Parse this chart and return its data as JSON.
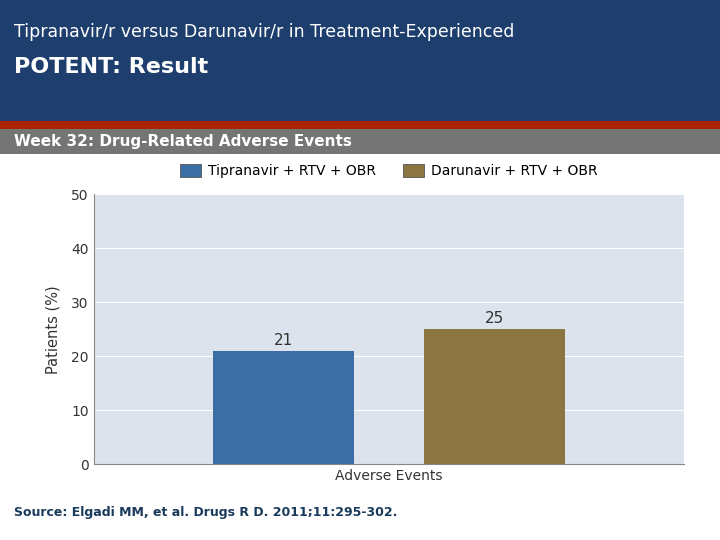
{
  "title_line1": "Tipranavir/r versus Darunavir/r in Treatment-Experienced",
  "title_line2": "POTENT: Result",
  "subtitle": "Week 32: Drug-Related Adverse Events",
  "legend_labels": [
    "Tipranavir + RTV + OBR",
    "Darunavir + RTV + OBR"
  ],
  "bar_colors": [
    "#3a6ea5",
    "#8b7642"
  ],
  "bar_values": [
    21,
    25
  ],
  "bar_labels": [
    "21",
    "25"
  ],
  "xlabel": "Adverse Events",
  "ylabel": "Patients (%)",
  "ylim": [
    0,
    50
  ],
  "yticks": [
    0,
    10,
    20,
    30,
    40,
    50
  ],
  "header_bg_color": "#1e3f6e",
  "subheader_bg_color": "#757575",
  "plot_bg_color": "#dce3ed",
  "source_text": "Source: Elgadi MM, et al. Drugs R D. 2011;11:295-302.",
  "title_color": "#ffffff",
  "subtitle_color": "#ffffff",
  "source_color": "#1a3a5c",
  "red_line_color": "#aa2200"
}
